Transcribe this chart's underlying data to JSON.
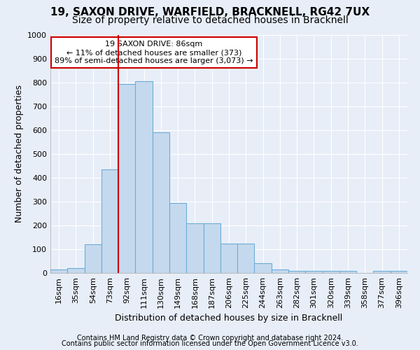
{
  "title_line1": "19, SAXON DRIVE, WARFIELD, BRACKNELL, RG42 7UX",
  "title_line2": "Size of property relative to detached houses in Bracknell",
  "xlabel": "Distribution of detached houses by size in Bracknell",
  "ylabel": "Number of detached properties",
  "footer_line1": "Contains HM Land Registry data © Crown copyright and database right 2024.",
  "footer_line2": "Contains public sector information licensed under the Open Government Licence v3.0.",
  "bin_labels": [
    "16sqm",
    "35sqm",
    "54sqm",
    "73sqm",
    "92sqm",
    "111sqm",
    "130sqm",
    "149sqm",
    "168sqm",
    "187sqm",
    "206sqm",
    "225sqm",
    "244sqm",
    "263sqm",
    "282sqm",
    "301sqm",
    "320sqm",
    "339sqm",
    "358sqm",
    "377sqm",
    "396sqm"
  ],
  "bar_heights": [
    15,
    20,
    120,
    435,
    795,
    805,
    590,
    295,
    210,
    210,
    125,
    125,
    40,
    15,
    10,
    10,
    10,
    10,
    0,
    10,
    10
  ],
  "bar_color": "#c5d9ee",
  "bar_edge_color": "#6baed6",
  "red_line_color": "#cc0000",
  "annotation_text": "19 SAXON DRIVE: 86sqm\n← 11% of detached houses are smaller (373)\n89% of semi-detached houses are larger (3,073) →",
  "annotation_box_color": "#ffffff",
  "annotation_box_edge_color": "#cc0000",
  "ylim": [
    0,
    1000
  ],
  "yticks": [
    0,
    100,
    200,
    300,
    400,
    500,
    600,
    700,
    800,
    900,
    1000
  ],
  "background_color": "#e8eef8",
  "axes_background": "#e8eef8",
  "grid_color": "#ffffff",
  "title_fontsize": 11,
  "subtitle_fontsize": 10,
  "axis_label_fontsize": 9,
  "tick_fontsize": 8,
  "footer_fontsize": 7
}
